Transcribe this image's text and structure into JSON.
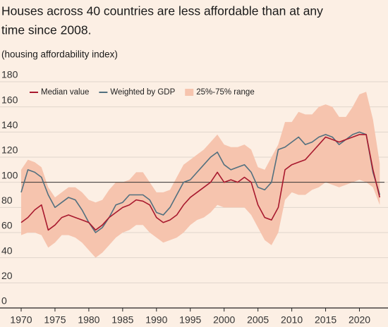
{
  "chart_data": {
    "type": "line",
    "title": [
      "Houses across 40 countries are less affordable than at any",
      "time since 2008."
    ],
    "subtitle": "(housing affordability index)",
    "x": [
      1970,
      1971,
      1972,
      1973,
      1974,
      1975,
      1976,
      1977,
      1978,
      1979,
      1980,
      1981,
      1982,
      1983,
      1984,
      1985,
      1986,
      1987,
      1988,
      1989,
      1990,
      1991,
      1992,
      1993,
      1994,
      1995,
      1996,
      1997,
      1998,
      1999,
      2000,
      2001,
      2002,
      2003,
      2004,
      2005,
      2006,
      2007,
      2008,
      2009,
      2010,
      2011,
      2012,
      2013,
      2014,
      2015,
      2016,
      2017,
      2018,
      2019,
      2020,
      2021,
      2022,
      2023
    ],
    "band": {
      "name": "25%-75% range",
      "color": "#f6c4ae",
      "low": [
        58,
        60,
        60,
        58,
        48,
        52,
        58,
        58,
        56,
        52,
        46,
        40,
        44,
        50,
        56,
        60,
        62,
        66,
        66,
        60,
        56,
        52,
        54,
        56,
        60,
        66,
        70,
        72,
        76,
        82,
        80,
        80,
        80,
        80,
        74,
        64,
        54,
        50,
        60,
        86,
        92,
        90,
        90,
        94,
        96,
        100,
        98,
        96,
        98,
        100,
        102,
        100,
        96,
        82
      ],
      "high": [
        110,
        118,
        116,
        112,
        96,
        88,
        92,
        96,
        96,
        92,
        86,
        84,
        86,
        94,
        100,
        100,
        102,
        108,
        108,
        100,
        92,
        92,
        94,
        104,
        114,
        118,
        122,
        126,
        132,
        138,
        130,
        128,
        128,
        130,
        126,
        112,
        110,
        120,
        130,
        148,
        148,
        156,
        154,
        154,
        160,
        162,
        160,
        152,
        152,
        160,
        170,
        172,
        150,
        115
      ]
    },
    "series": [
      {
        "name": "Median value",
        "color": "#a8192e",
        "values": [
          68,
          72,
          78,
          82,
          62,
          66,
          72,
          74,
          72,
          70,
          68,
          62,
          66,
          72,
          76,
          80,
          82,
          86,
          85,
          82,
          72,
          68,
          70,
          74,
          82,
          88,
          92,
          96,
          100,
          108,
          100,
          102,
          100,
          104,
          100,
          82,
          72,
          70,
          80,
          110,
          114,
          116,
          118,
          124,
          130,
          136,
          134,
          132,
          134,
          136,
          138,
          138,
          110,
          88
        ]
      },
      {
        "name": "Weighted by GDP",
        "color": "#52707f",
        "values": [
          92,
          110,
          108,
          104,
          90,
          80,
          84,
          88,
          86,
          78,
          68,
          60,
          64,
          72,
          82,
          84,
          90,
          90,
          90,
          86,
          76,
          74,
          80,
          90,
          100,
          102,
          108,
          114,
          120,
          124,
          114,
          110,
          112,
          114,
          108,
          96,
          94,
          100,
          126,
          128,
          132,
          136,
          130,
          132,
          136,
          138,
          136,
          130,
          134,
          138,
          140,
          138,
          108,
          90
        ]
      }
    ],
    "hline": 100,
    "xlim": [
      1970,
      2023.7
    ],
    "ylim": [
      0,
      180
    ],
    "xticks": [
      1970,
      1975,
      1980,
      1985,
      1990,
      1995,
      2000,
      2005,
      2010,
      2015,
      2020
    ],
    "yticks": [
      0,
      20,
      40,
      60,
      80,
      100,
      120,
      140,
      160,
      180
    ],
    "grid": true,
    "legend": "upper left"
  }
}
